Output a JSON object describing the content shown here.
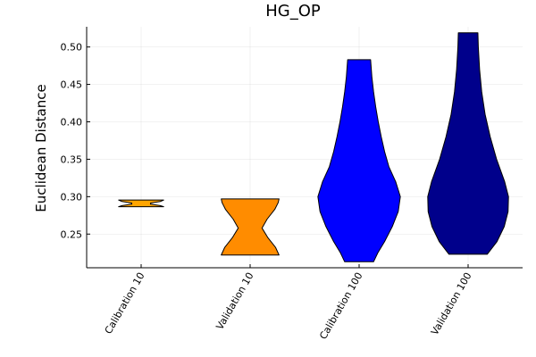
{
  "chart_data": {
    "type": "violin",
    "title": "HG_OP",
    "xlabel": "",
    "ylabel": "Euclidean Distance",
    "ylim": [
      0.205,
      0.527
    ],
    "yticks": [
      0.25,
      0.3,
      0.35,
      0.4,
      0.45,
      0.5
    ],
    "ytick_labels": [
      "0.25",
      "0.30",
      "0.35",
      "0.40",
      "0.45",
      "0.50"
    ],
    "grid": true,
    "legend": "none",
    "categories": [
      "Calibration 10",
      "Validation 10",
      "Calibration 100",
      "Validation 100"
    ],
    "series": [
      {
        "category": "Calibration 10",
        "color": "#FFA500",
        "density": [
          {
            "y": 0.2865,
            "w": 0.53
          },
          {
            "y": 0.288,
            "w": 0.45
          },
          {
            "y": 0.29,
            "w": 0.22
          },
          {
            "y": 0.2915,
            "w": 0.22
          },
          {
            "y": 0.2935,
            "w": 0.45
          },
          {
            "y": 0.2955,
            "w": 0.53
          }
        ]
      },
      {
        "category": "Validation 10",
        "color": "#FF8C00",
        "density": [
          {
            "y": 0.222,
            "w": 0.68
          },
          {
            "y": 0.232,
            "w": 0.6
          },
          {
            "y": 0.245,
            "w": 0.42
          },
          {
            "y": 0.258,
            "w": 0.28
          },
          {
            "y": 0.27,
            "w": 0.4
          },
          {
            "y": 0.283,
            "w": 0.58
          },
          {
            "y": 0.292,
            "w": 0.66
          },
          {
            "y": 0.297,
            "w": 0.68
          }
        ]
      },
      {
        "category": "Calibration 100",
        "color": "#0000FF",
        "density": [
          {
            "y": 0.213,
            "w": 0.34
          },
          {
            "y": 0.225,
            "w": 0.44
          },
          {
            "y": 0.24,
            "w": 0.6
          },
          {
            "y": 0.26,
            "w": 0.78
          },
          {
            "y": 0.28,
            "w": 0.92
          },
          {
            "y": 0.3,
            "w": 0.97
          },
          {
            "y": 0.32,
            "w": 0.86
          },
          {
            "y": 0.34,
            "w": 0.7
          },
          {
            "y": 0.36,
            "w": 0.6
          },
          {
            "y": 0.38,
            "w": 0.52
          },
          {
            "y": 0.4,
            "w": 0.45
          },
          {
            "y": 0.42,
            "w": 0.39
          },
          {
            "y": 0.44,
            "w": 0.34
          },
          {
            "y": 0.46,
            "w": 0.3
          },
          {
            "y": 0.483,
            "w": 0.27
          }
        ]
      },
      {
        "category": "Validation 100",
        "color": "#00008B",
        "density": [
          {
            "y": 0.223,
            "w": 0.45
          },
          {
            "y": 0.24,
            "w": 0.68
          },
          {
            "y": 0.26,
            "w": 0.85
          },
          {
            "y": 0.28,
            "w": 0.94
          },
          {
            "y": 0.3,
            "w": 0.95
          },
          {
            "y": 0.32,
            "w": 0.86
          },
          {
            "y": 0.35,
            "w": 0.67
          },
          {
            "y": 0.38,
            "w": 0.52
          },
          {
            "y": 0.41,
            "w": 0.4
          },
          {
            "y": 0.44,
            "w": 0.32
          },
          {
            "y": 0.47,
            "w": 0.27
          },
          {
            "y": 0.5,
            "w": 0.24
          },
          {
            "y": 0.519,
            "w": 0.23
          }
        ]
      }
    ]
  }
}
